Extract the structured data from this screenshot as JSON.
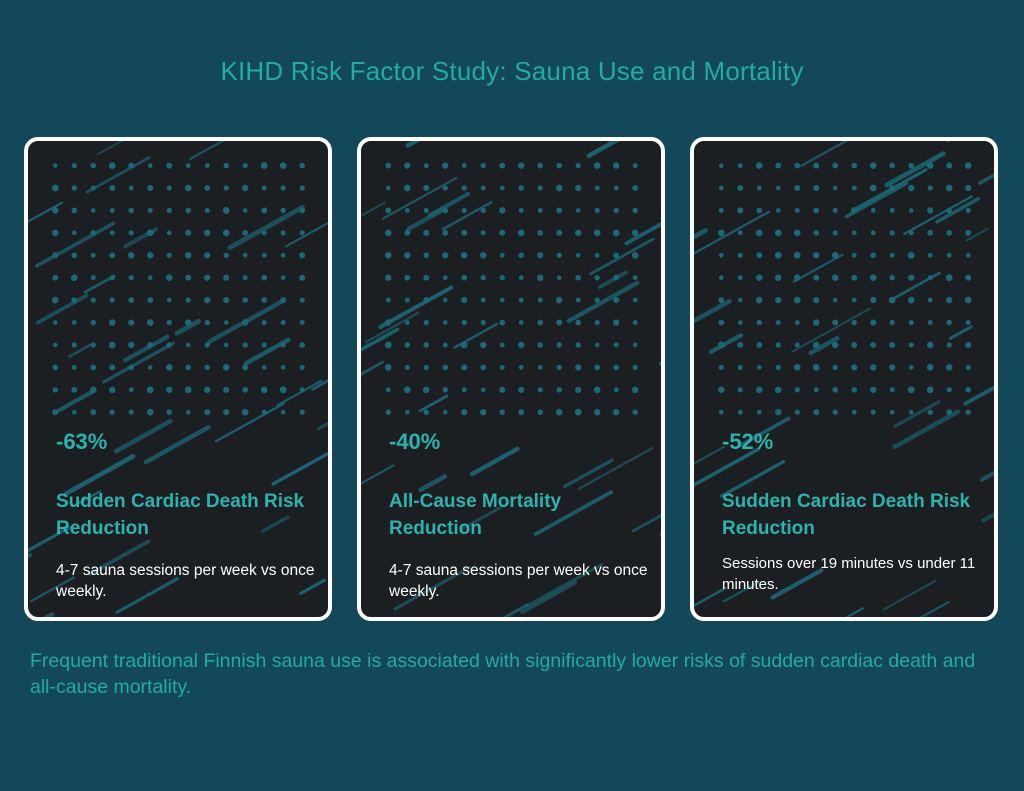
{
  "title": "KIHD Risk Factor Study: Sauna Use and Mortality",
  "colors": {
    "background": "#124859",
    "accent": "#22aaa7",
    "card_background": "#1c1f22",
    "card_border": "#ffffff",
    "pattern": "#1b6877"
  },
  "cards": [
    {
      "stat": "-63%",
      "label": "Sudden Cardiac Death Risk Reduction",
      "description": "4-7 sauna sessions per week vs once weekly."
    },
    {
      "stat": "-40%",
      "label": "All-Cause Mortality Reduction",
      "description": "4-7 sauna sessions per week vs once weekly."
    },
    {
      "stat": "-52%",
      "label": "Sudden Cardiac Death Risk Reduction",
      "description": "Sessions over 19 minutes vs under 11 minutes."
    }
  ],
  "footer": "Frequent traditional Finnish sauna use is associated with significantly lower risks of sudden cardiac death and all-cause mortality."
}
